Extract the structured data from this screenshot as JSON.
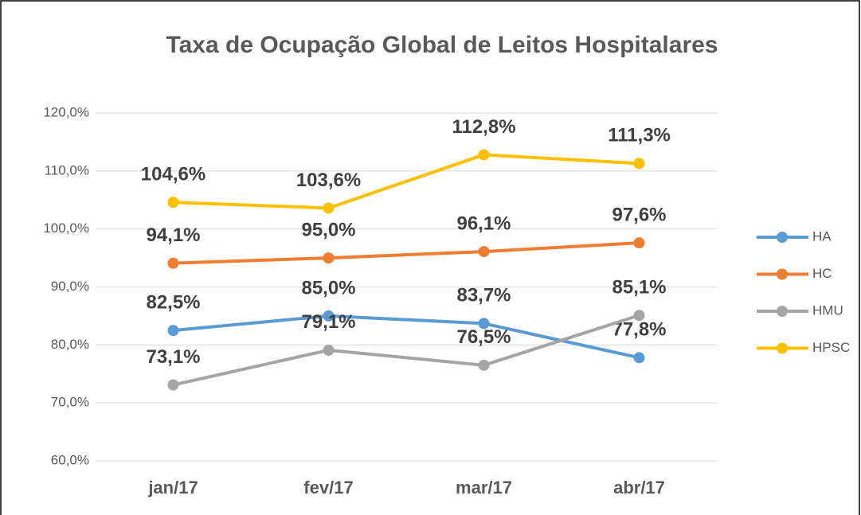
{
  "chart_data": {
    "type": "line",
    "title": "Taxa de Ocupação Global de Leitos Hospitalares",
    "categories": [
      "jan/17",
      "fev/17",
      "mar/17",
      "abr/17"
    ],
    "series": [
      {
        "name": "HA",
        "color": "#5b9bd5",
        "values": [
          82.5,
          85.0,
          83.7,
          77.8
        ],
        "value_labels": [
          "82,5%",
          "85,0%",
          "83,7%",
          "77,8%"
        ]
      },
      {
        "name": "HC",
        "color": "#ed7d31",
        "values": [
          94.1,
          95.0,
          96.1,
          97.6
        ],
        "value_labels": [
          "94,1%",
          "95,0%",
          "96,1%",
          "97,6%"
        ]
      },
      {
        "name": "HMU",
        "color": "#a5a5a5",
        "values": [
          73.1,
          79.1,
          76.5,
          85.1
        ],
        "value_labels": [
          "73,1%",
          "79,1%",
          "76,5%",
          "85,1%"
        ]
      },
      {
        "name": "HPSC",
        "color": "#ffc000",
        "values": [
          104.6,
          103.6,
          112.8,
          111.3
        ],
        "value_labels": [
          "104,6%",
          "103,6%",
          "112,8%",
          "111,3%"
        ]
      }
    ],
    "ylim": [
      60,
      120
    ],
    "yticks": [
      {
        "value": 60,
        "label": "60,0%"
      },
      {
        "value": 70,
        "label": "70,0%"
      },
      {
        "value": 80,
        "label": "80,0%"
      },
      {
        "value": 90,
        "label": "90,0%"
      },
      {
        "value": 100,
        "label": "100,0%"
      },
      {
        "value": 110,
        "label": "110,0%"
      },
      {
        "value": 120,
        "label": "120,0%"
      }
    ],
    "grid": true,
    "legend": "right"
  }
}
